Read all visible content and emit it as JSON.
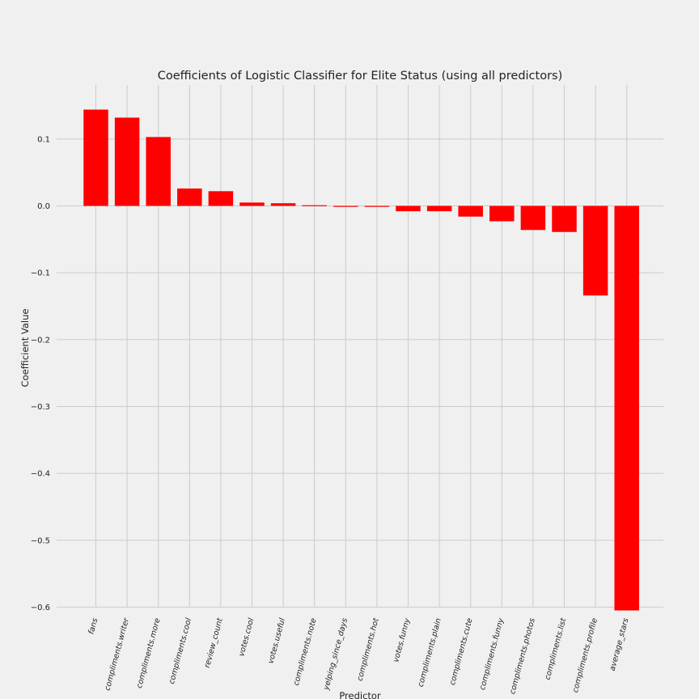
{
  "chart_data": {
    "type": "bar",
    "title": "Coefficients of Logistic Classifier for Elite Status (using all predictors)",
    "xlabel": "Predictor",
    "ylabel": "Coefficient Value",
    "categories": [
      "fans",
      "compliments.writer",
      "compliments.more",
      "compliments.cool",
      "review_count",
      "votes.cool",
      "votes.useful",
      "compliments.note",
      "yelping_since_days",
      "compliments.hot",
      "votes.funny",
      "compliments.plain",
      "compliments.cute",
      "compliments.funny",
      "compliments.photos",
      "compliments.list",
      "compliments.profile",
      "average_stars"
    ],
    "values": [
      0.144,
      0.132,
      0.103,
      0.026,
      0.022,
      0.005,
      0.004,
      0.001,
      -0.001,
      -0.001,
      -0.008,
      -0.008,
      -0.016,
      -0.023,
      -0.036,
      -0.039,
      -0.134,
      -0.605
    ],
    "ylim": [
      -0.6,
      0.16
    ],
    "yticks": [
      0.1,
      0.0,
      -0.1,
      -0.2,
      -0.3,
      -0.4,
      -0.5,
      -0.6
    ],
    "ytick_labels": [
      "0.1",
      "0.0",
      "−0.1",
      "−0.2",
      "−0.3",
      "−0.4",
      "−0.5",
      "−0.6"
    ],
    "grid": true,
    "bar_color": "#ff0000",
    "background_color": "#f0f0f0"
  }
}
